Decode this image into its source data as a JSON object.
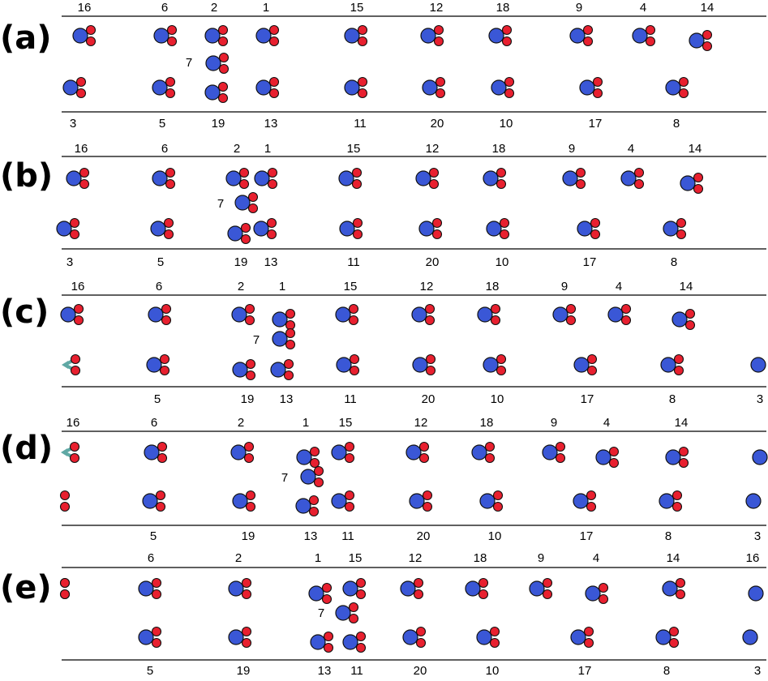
{
  "colors": {
    "carbon": "#3a57d6",
    "oxygen": "#e8202f",
    "bond": "#5fa8a4",
    "outline": "#111111",
    "line": "#000000"
  },
  "panels": [
    {
      "label": "(a)",
      "top_numbers": [
        "16",
        "6",
        "2",
        "1",
        "15",
        "12",
        "18",
        "9",
        "4",
        "14"
      ],
      "mid_number": "7",
      "bottom_numbers": [
        "3",
        "5",
        "19",
        "13",
        "11",
        "20",
        "10",
        "17",
        "8"
      ]
    },
    {
      "label": "(b)",
      "top_numbers": [
        "16",
        "6",
        "2",
        "1",
        "15",
        "12",
        "18",
        "9",
        "4",
        "14"
      ],
      "mid_number": "7",
      "bottom_numbers": [
        "3",
        "5",
        "19",
        "13",
        "11",
        "20",
        "10",
        "17",
        "8"
      ]
    },
    {
      "label": "(c)",
      "top_numbers": [
        "16",
        "6",
        "2",
        "1",
        "15",
        "12",
        "18",
        "9",
        "4",
        "14"
      ],
      "mid_number": "7",
      "bottom_numbers": [
        "5",
        "19",
        "13",
        "11",
        "20",
        "10",
        "17",
        "8",
        "3"
      ]
    },
    {
      "label": "(d)",
      "top_numbers": [
        "16",
        "6",
        "2",
        "1",
        "15",
        "12",
        "18",
        "9",
        "4",
        "14"
      ],
      "mid_number": "7",
      "bottom_numbers": [
        "5",
        "19",
        "13",
        "11",
        "20",
        "10",
        "17",
        "8",
        "3"
      ]
    },
    {
      "label": "(e)",
      "top_numbers": [
        "6",
        "2",
        "1",
        "15",
        "12",
        "18",
        "9",
        "4",
        "14",
        "16"
      ],
      "mid_number": "7",
      "bottom_numbers": [
        "5",
        "19",
        "13",
        "11",
        "20",
        "10",
        "17",
        "8",
        "3"
      ]
    }
  ]
}
